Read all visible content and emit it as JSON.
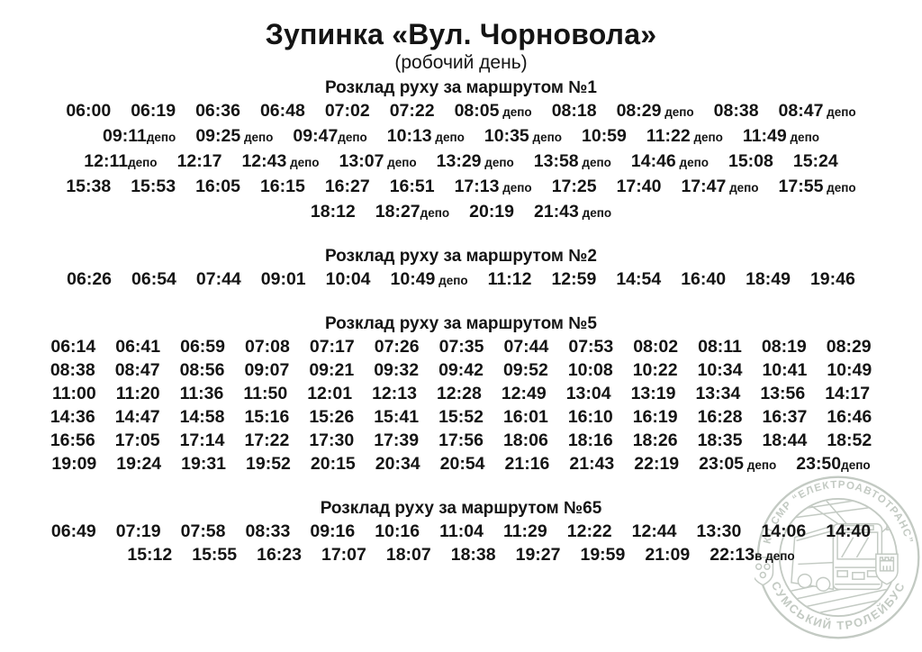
{
  "title": "Зупинка «Вул. Чорновола»",
  "subtitle": "(робочий день)",
  "colors": {
    "text": "#141414",
    "background": "#ffffff",
    "watermark": "#c3cac3"
  },
  "watermark": {
    "arc_top": "КП СМР “ЕЛЕКТРОАВТОТРАНС”",
    "arc_bottom": "СУМСЬКИЙ ТРОЛЕЙБУС"
  },
  "routes": [
    {
      "header": "Розклад руху за маршрутом №1",
      "rows": [
        [
          "06:00",
          "06:19",
          "06:36",
          "06:48",
          "07:02",
          "07:22",
          "08:05 депо",
          "08:18",
          "08:29 депо",
          "08:38",
          "08:47 депо"
        ],
        [
          "09:11депо",
          "09:25 депо",
          "09:47депо",
          "10:13 депо",
          "10:35 депо",
          "10:59",
          "11:22 депо",
          "11:49 депо"
        ],
        [
          "12:11депо",
          "12:17",
          "12:43 депо",
          "13:07 депо",
          "13:29 депо",
          "13:58 депо",
          "14:46 депо",
          "15:08",
          "15:24"
        ],
        [
          "15:38",
          "15:53",
          "16:05",
          "16:15",
          "16:27",
          "16:51",
          "17:13 депо",
          "17:25",
          "17:40",
          "17:47 депо",
          "17:55 депо"
        ],
        [
          "18:12",
          "18:27депо",
          "20:19",
          "21:43 депо"
        ]
      ]
    },
    {
      "header": "Розклад руху за маршрутом №2",
      "rows": [
        [
          "06:26",
          "06:54",
          "07:44",
          "09:01",
          "10:04",
          "10:49 депо",
          "11:12",
          "12:59",
          "14:54",
          "16:40",
          "18:49",
          "19:46"
        ]
      ]
    },
    {
      "header": "Розклад руху за маршрутом №5",
      "rows": [
        [
          "06:14",
          "06:41",
          "06:59",
          "07:08",
          "07:17",
          "07:26",
          "07:35",
          "07:44",
          "07:53",
          "08:02",
          "08:11",
          "08:19",
          "08:29"
        ],
        [
          "08:38",
          "08:47",
          "08:56",
          "09:07",
          "09:21",
          "09:32",
          "09:42",
          "09:52",
          "10:08",
          "10:22",
          "10:34",
          "10:41",
          "10:49"
        ],
        [
          "11:00",
          "11:20",
          "11:36",
          "11:50",
          "12:01",
          "12:13",
          "12:28",
          "12:49",
          "13:04",
          "13:19",
          "13:34",
          "13:56",
          "14:17"
        ],
        [
          "14:36",
          "14:47",
          "14:58",
          "15:16",
          "15:26",
          "15:41",
          "15:52",
          "16:01",
          "16:10",
          "16:19",
          "16:28",
          "16:37",
          "16:46"
        ],
        [
          "16:56",
          "17:05",
          "17:14",
          "17:22",
          "17:30",
          "17:39",
          "17:56",
          "18:06",
          "18:16",
          "18:26",
          "18:35",
          "18:44",
          "18:52"
        ],
        [
          "19:09",
          "19:24",
          "19:31",
          "19:52",
          "20:15",
          "20:34",
          "20:54",
          "21:16",
          "21:43",
          "22:19",
          "23:05 депо",
          "23:50депо"
        ]
      ]
    },
    {
      "header": "Розклад руху за маршрутом №65",
      "rows": [
        [
          "06:49",
          "07:19",
          "07:58",
          "08:33",
          "09:16",
          "10:16",
          "11:04",
          "11:29",
          "12:22",
          "12:44",
          "13:30",
          "14:06",
          "14:40"
        ],
        [
          "15:12",
          "15:55",
          "16:23",
          "17:07",
          "18:07",
          "18:38",
          "19:27",
          "19:59",
          "21:09",
          "22:13в депо"
        ]
      ]
    }
  ]
}
